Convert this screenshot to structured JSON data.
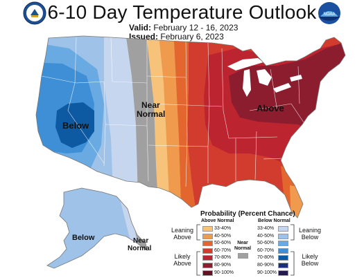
{
  "header": {
    "title": "6-10 Day Temperature Outlook",
    "valid_label": "Valid:",
    "valid_value": "February 12 - 16, 2023",
    "issued_label": "Issued:",
    "issued_value": "February 6, 2023"
  },
  "logos": {
    "noaa_text": "NOAA"
  },
  "map_labels": {
    "below": "Below",
    "near": "Near",
    "normal": "Normal",
    "above": "Above",
    "alaska_below": "Below"
  },
  "legend": {
    "title": "Probability (Percent Chance)",
    "above_header": "Above Normal",
    "below_header": "Below Normal",
    "near_header_1": "Near",
    "near_header_2": "Normal",
    "leaning_above_1": "Leaning",
    "leaning_above_2": "Above",
    "likely_above_1": "Likely",
    "likely_above_2": "Above",
    "leaning_below_1": "Leaning",
    "leaning_below_2": "Below",
    "likely_below_1": "Likely",
    "likely_below_2": "Below",
    "above": [
      {
        "range": "33-40%",
        "color": "#f7c37a"
      },
      {
        "range": "40-50%",
        "color": "#ef9a4c"
      },
      {
        "range": "50-60%",
        "color": "#e2662e"
      },
      {
        "range": "60-70%",
        "color": "#d23c2e"
      },
      {
        "range": "70-80%",
        "color": "#bc2430"
      },
      {
        "range": "80-90%",
        "color": "#8c1d2e"
      },
      {
        "range": "90-100%",
        "color": "#5e1424"
      }
    ],
    "below": [
      {
        "range": "33-40%",
        "color": "#c6d6ee"
      },
      {
        "range": "40-50%",
        "color": "#9fc3e8"
      },
      {
        "range": "50-60%",
        "color": "#6aaae2"
      },
      {
        "range": "60-70%",
        "color": "#3f8fd6"
      },
      {
        "range": "70-80%",
        "color": "#0e5aa2"
      },
      {
        "range": "80-90%",
        "color": "#1a2f78"
      },
      {
        "range": "90-100%",
        "color": "#241a4e"
      }
    ],
    "near_color": "#a0a0a0"
  }
}
